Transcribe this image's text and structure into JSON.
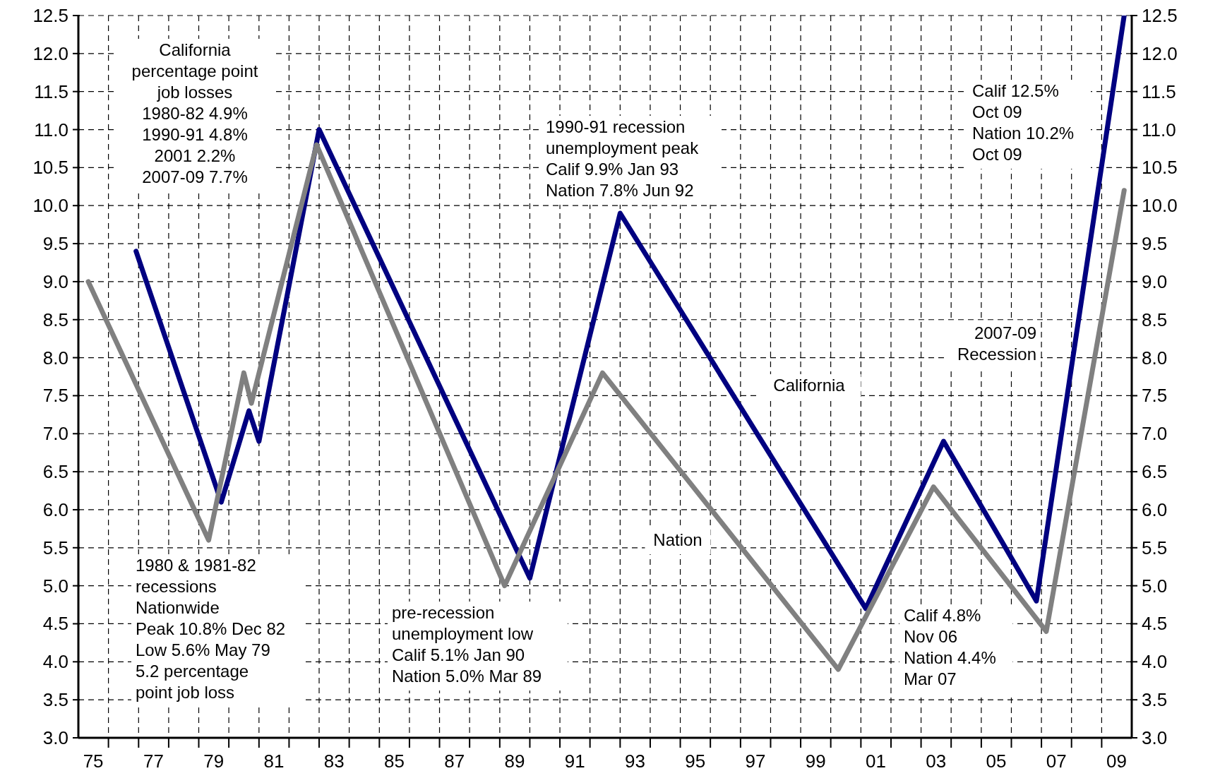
{
  "chart_data": {
    "type": "line",
    "xlim": [
      "1975-01",
      "2010-01"
    ],
    "xticks": [
      {
        "value": "1975-07",
        "label": "75"
      },
      {
        "value": "1976-01",
        "label": null
      },
      {
        "value": "1977-01",
        "label": null
      },
      {
        "value": "1977-07",
        "label": "77"
      },
      {
        "value": "1978-01",
        "label": null
      },
      {
        "value": "1979-01",
        "label": null
      },
      {
        "value": "1979-07",
        "label": "79"
      },
      {
        "value": "1980-01",
        "label": null
      },
      {
        "value": "1981-01",
        "label": null
      },
      {
        "value": "1981-07",
        "label": "81"
      },
      {
        "value": "1982-01",
        "label": null
      },
      {
        "value": "1983-01",
        "label": null
      },
      {
        "value": "1983-07",
        "label": "83"
      },
      {
        "value": "1984-01",
        "label": null
      },
      {
        "value": "1985-01",
        "label": null
      },
      {
        "value": "1985-07",
        "label": "85"
      },
      {
        "value": "1986-01",
        "label": null
      },
      {
        "value": "1987-01",
        "label": null
      },
      {
        "value": "1987-07",
        "label": "87"
      },
      {
        "value": "1988-01",
        "label": null
      },
      {
        "value": "1989-01",
        "label": null
      },
      {
        "value": "1989-07",
        "label": "89"
      },
      {
        "value": "1990-01",
        "label": null
      },
      {
        "value": "1991-01",
        "label": null
      },
      {
        "value": "1991-07",
        "label": "91"
      },
      {
        "value": "1992-01",
        "label": null
      },
      {
        "value": "1993-01",
        "label": null
      },
      {
        "value": "1993-07",
        "label": "93"
      },
      {
        "value": "1994-01",
        "label": null
      },
      {
        "value": "1995-01",
        "label": null
      },
      {
        "value": "1995-07",
        "label": "95"
      },
      {
        "value": "1996-01",
        "label": null
      },
      {
        "value": "1997-01",
        "label": null
      },
      {
        "value": "1997-07",
        "label": "97"
      },
      {
        "value": "1998-01",
        "label": null
      },
      {
        "value": "1999-01",
        "label": null
      },
      {
        "value": "1999-07",
        "label": "99"
      },
      {
        "value": "2000-01",
        "label": null
      },
      {
        "value": "2001-01",
        "label": null
      },
      {
        "value": "2001-07",
        "label": "01"
      },
      {
        "value": "2002-01",
        "label": null
      },
      {
        "value": "2003-01",
        "label": null
      },
      {
        "value": "2003-07",
        "label": "03"
      },
      {
        "value": "2004-01",
        "label": null
      },
      {
        "value": "2005-01",
        "label": null
      },
      {
        "value": "2005-07",
        "label": "05"
      },
      {
        "value": "2006-01",
        "label": null
      },
      {
        "value": "2007-01",
        "label": null
      },
      {
        "value": "2007-07",
        "label": "07"
      },
      {
        "value": "2008-01",
        "label": null
      },
      {
        "value": "2009-01",
        "label": null
      },
      {
        "value": "2009-07",
        "label": "09"
      }
    ],
    "ylim": [
      3,
      12.5
    ],
    "yticks": [
      {
        "value": 3,
        "label": "3.0"
      },
      3.5,
      {
        "value": 4,
        "label": "4.0"
      },
      4.5,
      {
        "value": 5,
        "label": "5.0"
      },
      5.5,
      {
        "value": 6,
        "label": "6.0"
      },
      6.5,
      {
        "value": 7,
        "label": "7.0"
      },
      7.5,
      {
        "value": 8,
        "label": "8.0"
      },
      8.5,
      {
        "value": 9,
        "label": "9.0"
      },
      9.5,
      {
        "value": 10,
        "label": "10.0"
      },
      10.5,
      {
        "value": 11,
        "label": "11.0"
      },
      11.5,
      {
        "value": 12,
        "label": "12.0"
      },
      12.5
    ],
    "y2lim": [
      3,
      12.5
    ],
    "y2ticks": [
      {
        "value": 3,
        "label": "3.0"
      },
      3.5,
      {
        "value": 4,
        "label": "4.0"
      },
      4.5,
      {
        "value": 5,
        "label": "5.0"
      },
      5.5,
      {
        "value": 6,
        "label": "6.0"
      },
      6.5,
      {
        "value": 7,
        "label": "7.0"
      },
      7.5,
      {
        "value": 8,
        "label": "8.0"
      },
      8.5,
      {
        "value": 9,
        "label": "9.0"
      },
      9.5,
      {
        "value": 10,
        "label": "10.0"
      },
      10.5,
      {
        "value": 11,
        "label": "11.0"
      },
      11.5,
      {
        "value": 12,
        "label": "12.0"
      },
      12.5
    ],
    "grid": true,
    "legend": false,
    "marker": "none",
    "line_style": "solid",
    "series": [
      {
        "name": "California",
        "color": "#000080",
        "x": [
          "1976-12",
          "1979-10",
          "1980-09",
          "1981-01",
          "1983-01",
          "1990-01",
          "1993-01",
          "2001-03",
          "2003-10",
          "2006-11",
          "2009-10"
        ],
        "values": [
          9.4,
          6.1,
          7.3,
          6.9,
          11.0,
          5.1,
          9.9,
          4.7,
          6.9,
          4.8,
          12.5
        ]
      },
      {
        "name": "Nation",
        "color": "#808080",
        "x": [
          "1975-05",
          "1979-05",
          "1980-07",
          "1980-10",
          "1982-12",
          "1989-03",
          "1992-06",
          "2000-04",
          "2003-06",
          "2007-03",
          "2009-10"
        ],
        "values": [
          9.0,
          5.6,
          7.8,
          7.4,
          10.8,
          5.0,
          7.8,
          3.9,
          6.3,
          4.4,
          10.2
        ]
      }
    ],
    "annotations": [
      "California\npercentage point\njob losses\n1980-82 4.9%\n1990-91 4.8%\n2001 2.2%\n2007-09 7.7%",
      "1990-91 recession\nunemployment peak\nCalif 9.9% Jan 93\nNation 7.8% Jun 92",
      "Calif 12.5%\nOct 09\nNation 10.2%\nOct 09",
      "1980 & 1981-82\nrecessions\nNationwide\nPeak 10.8% Dec 82\nLow 5.6% May 79\n5.2 percentage\npoint job loss",
      "pre-recession\nunemployment low\nCalif 5.1% Jan 90\nNation 5.0% Mar 89",
      "Calif 4.8%\nNov 06\nNation 4.4%\nMar 07",
      "2007-09\nRecession"
    ]
  }
}
